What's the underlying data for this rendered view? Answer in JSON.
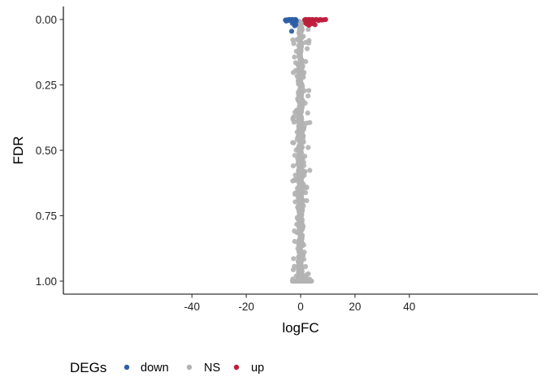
{
  "chart_data": {
    "type": "scatter",
    "xlabel": "logFC",
    "ylabel": "FDR",
    "xlim": [
      -44,
      44
    ],
    "ylim": [
      1.04,
      -0.04
    ],
    "y_reversed": true,
    "x_ticks": [
      -40,
      -20,
      0,
      20,
      40
    ],
    "x_tick_labels": [
      "-40",
      "-20",
      "0",
      "20",
      "40"
    ],
    "y_ticks": [
      0,
      0.25,
      0.5,
      0.75,
      1.0
    ],
    "y_tick_labels": [
      "0.00",
      "0.25",
      "0.50",
      "0.75",
      "1.00"
    ],
    "grid": false,
    "legend": {
      "title": "DEGs",
      "position": "bottom-left",
      "entries": [
        {
          "label": "down",
          "color": "#2d5fa8"
        },
        {
          "label": "NS",
          "color": "#b3b3b3"
        },
        {
          "label": "up",
          "color": "#be1e3c"
        }
      ]
    },
    "series": [
      {
        "name": "down",
        "color": "#2d5fa8",
        "x": [
          -5.6,
          -5.3,
          -4.8,
          -4.5,
          -4.2,
          -3.9,
          -3.6,
          -3.4,
          -3.1,
          -2.8,
          -2.6,
          -2.3,
          -2.1,
          -1.9,
          -1.7,
          -1.6,
          -3.0,
          -2.4,
          -1.8,
          -2.2,
          -3.3
        ],
        "y": [
          0.002,
          0.006,
          0.001,
          0.003,
          0.0,
          0.004,
          0.001,
          0.005,
          0.0,
          0.002,
          0.008,
          0.001,
          0.004,
          0.0,
          0.002,
          0.006,
          0.015,
          0.012,
          0.02,
          0.024,
          0.045
        ]
      },
      {
        "name": "up",
        "color": "#be1e3c",
        "x": [
          1.5,
          1.8,
          2.0,
          2.2,
          2.5,
          2.7,
          3.0,
          3.3,
          3.6,
          3.9,
          4.3,
          4.7,
          5.1,
          5.6,
          6.1,
          6.6,
          7.2,
          7.8,
          8.5,
          9.2,
          1.9,
          2.4,
          3.1,
          4.0,
          4.6,
          5.3
        ],
        "y": [
          0.001,
          0.004,
          0.0,
          0.006,
          0.002,
          0.003,
          0.0,
          0.005,
          0.001,
          0.002,
          0.0,
          0.003,
          0.002,
          0.0,
          0.001,
          0.004,
          0.0,
          0.002,
          0.001,
          0.0,
          0.014,
          0.018,
          0.022,
          0.016,
          0.012,
          0.02
        ]
      },
      {
        "name": "NS",
        "color": "#b3b3b3",
        "n_points": 900,
        "x_range": [
          -3,
          4.5
        ],
        "y_range": [
          0.005,
          1.0
        ]
      }
    ]
  }
}
